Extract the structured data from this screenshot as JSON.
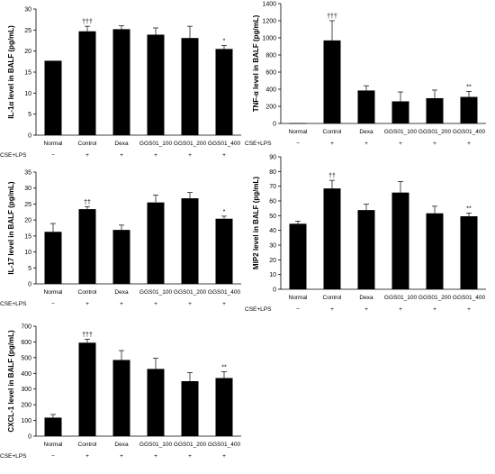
{
  "panel_label_text": "CSE+LPS",
  "colors": {
    "bar": "#000000",
    "axis": "#000000",
    "background": "#ffffff"
  },
  "chart_data": [
    {
      "type": "bar",
      "ylabel": "IL-1α level in BALF (pg/mL)",
      "ylim": [
        0,
        30
      ],
      "yticks": [
        0,
        5,
        10,
        15,
        20,
        25,
        30
      ],
      "categories": [
        "Normal",
        "Control",
        "Dexa",
        "GGS01_100",
        "GGS01_200",
        "GGS01_400"
      ],
      "values": [
        17.7,
        24.7,
        25.2,
        23.9,
        23.1,
        20.5
      ],
      "errors": [
        0,
        1.2,
        0.8,
        1.6,
        2.8,
        0.8
      ],
      "annotations": [
        "",
        "†††",
        "",
        "",
        "",
        "*"
      ],
      "condition_row_label": "CSE+LPS",
      "conditions": [
        "−",
        "+",
        "+",
        "+",
        "+",
        "+"
      ],
      "grid": false
    },
    {
      "type": "bar",
      "ylabel": "TNF-α level in BALF (pg/mL)",
      "ylim": [
        0,
        1400
      ],
      "yticks": [
        0,
        200,
        400,
        600,
        800,
        1000,
        1200,
        1400
      ],
      "categories": [
        "Normal",
        "Control",
        "Dexa",
        "GGS01_100",
        "GGS01_200",
        "GGS01_400"
      ],
      "values": [
        5,
        970,
        385,
        258,
        295,
        310
      ],
      "errors": [
        0,
        230,
        55,
        110,
        95,
        65
      ],
      "annotations": [
        "",
        "†††",
        "",
        "",
        "",
        "**"
      ],
      "condition_row_label": "CSE+LPS",
      "conditions": [
        "−",
        "+",
        "+",
        "+",
        "+",
        "+"
      ],
      "grid": false
    },
    {
      "type": "bar",
      "ylabel": "IL-17 level in BALF (pg/mL)",
      "ylim": [
        0,
        35
      ],
      "yticks": [
        0,
        5,
        10,
        15,
        20,
        25,
        30,
        35
      ],
      "categories": [
        "Normal",
        "Control",
        "Dexa",
        "GGS01_100",
        "GGS01_200",
        "GGS01_400"
      ],
      "values": [
        16.3,
        23.4,
        16.9,
        25.5,
        26.8,
        20.4
      ],
      "errors": [
        2.6,
        0.8,
        1.5,
        2.3,
        1.8,
        0.8
      ],
      "annotations": [
        "",
        "††",
        "",
        "",
        "",
        "*"
      ],
      "condition_row_label": "CSE+LPS",
      "conditions": [
        "−",
        "+",
        "+",
        "+",
        "+",
        "+"
      ],
      "grid": false
    },
    {
      "type": "bar",
      "ylabel": "MIP2 level in BALF (pg/mL)",
      "ylim": [
        0,
        90
      ],
      "yticks": [
        0,
        10,
        20,
        30,
        40,
        50,
        60,
        70,
        80,
        90
      ],
      "categories": [
        "Normal",
        "Control",
        "Dexa",
        "GGS01_100",
        "GGS01_200",
        "GGS01_400"
      ],
      "values": [
        44.5,
        68.5,
        53.8,
        65.7,
        51.6,
        49.6
      ],
      "errors": [
        1.8,
        5.5,
        4.0,
        7.5,
        4.8,
        2.2
      ],
      "annotations": [
        "",
        "††",
        "",
        "",
        "",
        "**"
      ],
      "condition_row_label": "CSE+LPS",
      "conditions": [
        "−",
        "+",
        "+",
        "+",
        "+",
        "+"
      ],
      "grid": false
    },
    {
      "type": "bar",
      "ylabel": "CXCL-1 level in BALF (pg/mL)",
      "ylim": [
        0,
        700
      ],
      "yticks": [
        0,
        100,
        200,
        300,
        400,
        500,
        600,
        700
      ],
      "categories": [
        "Normal",
        "Control",
        "Dexa",
        "GGS01_100",
        "GGS01_200",
        "GGS01_400"
      ],
      "values": [
        118,
        595,
        485,
        428,
        350,
        370
      ],
      "errors": [
        20,
        22,
        60,
        68,
        55,
        40
      ],
      "annotations": [
        "",
        "†††",
        "",
        "",
        "",
        "**"
      ],
      "condition_row_label": "CSE+LPS",
      "conditions": [
        "−",
        "+",
        "+",
        "+",
        "+",
        "+"
      ],
      "grid": false
    }
  ]
}
